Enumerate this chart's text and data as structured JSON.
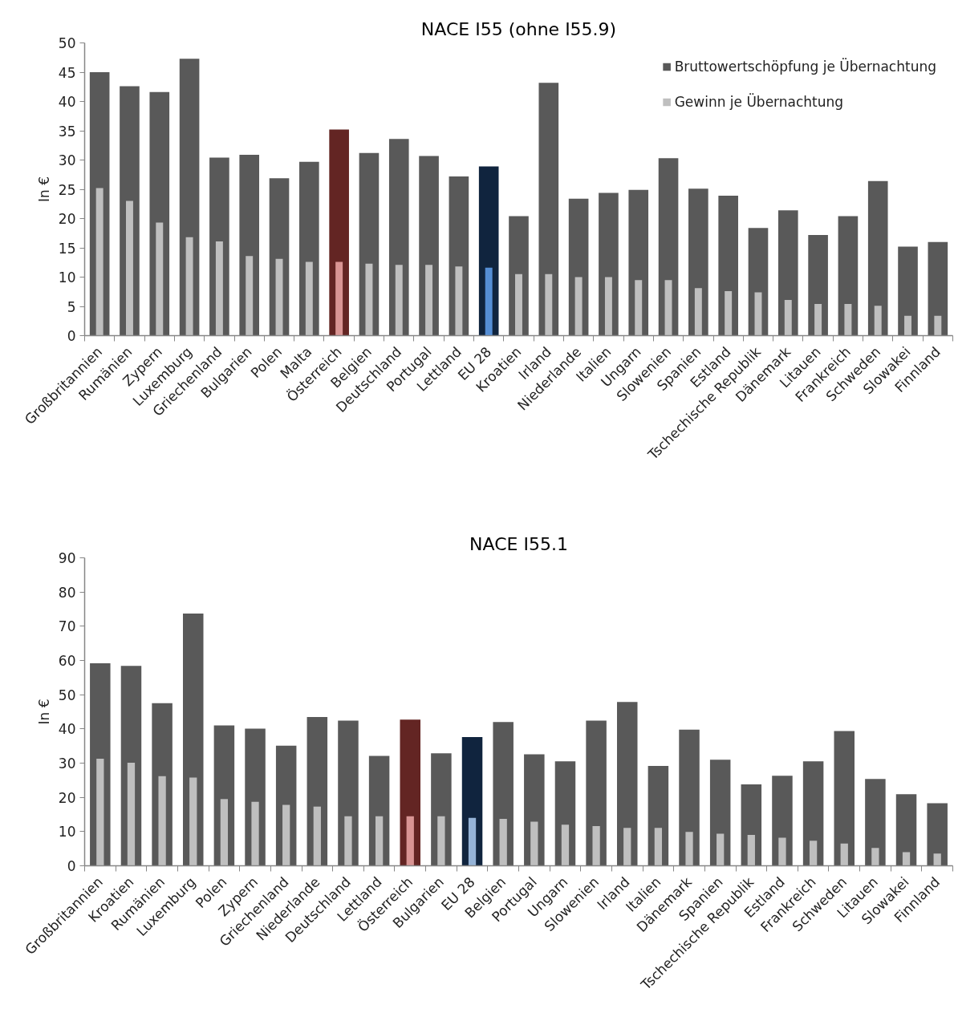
{
  "chart_data": [
    {
      "type": "bar",
      "title": "NACE I55 (ohne I55.9)",
      "ylabel": "In €",
      "categories": [
        "Großbritannien",
        "Rumänien",
        "Zypern",
        "Luxemburg",
        "Griechenland",
        "Bulgarien",
        "Polen",
        "Malta",
        "Österreich",
        "Belgien",
        "Deutschland",
        "Portugal",
        "Lettland",
        "EU 28",
        "Kroatien",
        "Irland",
        "Niederlande",
        "Italien",
        "Ungarn",
        "Slowenien",
        "Spanien",
        "Estland",
        "Tschechische Republik",
        "Dänemark",
        "Litauen",
        "Frankreich",
        "Schweden",
        "Slowakei",
        "Finnland"
      ],
      "series": [
        {
          "name": "Bruttowertschöpfung je Übernachtung",
          "color": "#595959",
          "colors": [
            "#595959",
            "#595959",
            "#595959",
            "#595959",
            "#595959",
            "#595959",
            "#595959",
            "#595959",
            "#632523",
            "#595959",
            "#595959",
            "#595959",
            "#595959",
            "#10243e",
            "#595959",
            "#595959",
            "#595959",
            "#595959",
            "#595959",
            "#595959",
            "#595959",
            "#595959",
            "#595959",
            "#595959",
            "#595959",
            "#595959",
            "#595959",
            "#595959",
            "#595959"
          ],
          "values": [
            45.0,
            42.6,
            41.6,
            47.3,
            30.4,
            30.9,
            26.9,
            29.7,
            35.2,
            31.2,
            33.6,
            30.7,
            27.2,
            28.9,
            20.4,
            43.2,
            23.4,
            24.4,
            24.9,
            30.3,
            25.1,
            23.9,
            18.4,
            21.4,
            17.2,
            20.4,
            26.4,
            15.2,
            16.0
          ]
        },
        {
          "name": "Gewinn je Übernachtung",
          "color": "#bfbfbf",
          "colors": [
            "#bfbfbf",
            "#bfbfbf",
            "#bfbfbf",
            "#bfbfbf",
            "#bfbfbf",
            "#bfbfbf",
            "#bfbfbf",
            "#bfbfbf",
            "#d99594",
            "#bfbfbf",
            "#bfbfbf",
            "#bfbfbf",
            "#bfbfbf",
            "#558ed5",
            "#bfbfbf",
            "#bfbfbf",
            "#bfbfbf",
            "#bfbfbf",
            "#bfbfbf",
            "#bfbfbf",
            "#bfbfbf",
            "#bfbfbf",
            "#bfbfbf",
            "#bfbfbf",
            "#bfbfbf",
            "#bfbfbf",
            "#bfbfbf",
            "#bfbfbf",
            "#bfbfbf"
          ],
          "values": [
            25.2,
            23.0,
            19.3,
            16.8,
            16.1,
            13.6,
            13.1,
            12.6,
            12.6,
            12.3,
            12.1,
            12.1,
            11.8,
            11.6,
            10.5,
            10.5,
            10.0,
            10.0,
            9.5,
            9.5,
            8.1,
            7.6,
            7.4,
            6.1,
            5.4,
            5.4,
            5.1,
            3.4,
            3.4
          ]
        }
      ],
      "ylim": [
        0,
        50
      ],
      "yticks": [
        0,
        5,
        10,
        15,
        20,
        25,
        30,
        35,
        40,
        45,
        50
      ],
      "grid": false,
      "legend": "top right"
    },
    {
      "type": "bar",
      "title": "NACE I55.1",
      "ylabel": "In €",
      "categories": [
        "Großbritannien",
        "Kroatien",
        "Rumänien",
        "Luxemburg",
        "Polen",
        "Zypern",
        "Griechenland",
        "Niederlande",
        "Deutschland",
        "Lettland",
        "Österreich",
        "Bulgarien",
        "EU 28",
        "Belgien",
        "Portugal",
        "Ungarn",
        "Slowenien",
        "Irland",
        "Italien",
        "Dänemark",
        "Spanien",
        "Tschechische Republik",
        "Estland",
        "Frankreich",
        "Schweden",
        "Litauen",
        "Slowakei",
        "Finnland"
      ],
      "series": [
        {
          "colors": [
            "#595959",
            "#595959",
            "#595959",
            "#595959",
            "#595959",
            "#595959",
            "#595959",
            "#595959",
            "#595959",
            "#595959",
            "#632523",
            "#595959",
            "#10243e",
            "#595959",
            "#595959",
            "#595959",
            "#595959",
            "#595959",
            "#595959",
            "#595959",
            "#595959",
            "#595959",
            "#595959",
            "#595959",
            "#595959",
            "#595959",
            "#595959",
            "#595959"
          ],
          "values": [
            59.2,
            58.4,
            47.5,
            73.7,
            41.0,
            40.1,
            35.1,
            43.5,
            42.4,
            32.1,
            42.7,
            32.9,
            37.6,
            42.0,
            32.6,
            30.5,
            42.4,
            47.9,
            29.2,
            39.8,
            31.0,
            23.8,
            26.3,
            30.5,
            39.4,
            25.4,
            20.9,
            18.3
          ]
        },
        {
          "colors": [
            "#bfbfbf",
            "#bfbfbf",
            "#bfbfbf",
            "#bfbfbf",
            "#bfbfbf",
            "#bfbfbf",
            "#bfbfbf",
            "#bfbfbf",
            "#bfbfbf",
            "#bfbfbf",
            "#d99594",
            "#bfbfbf",
            "#95b3d7",
            "#bfbfbf",
            "#bfbfbf",
            "#bfbfbf",
            "#bfbfbf",
            "#bfbfbf",
            "#bfbfbf",
            "#bfbfbf",
            "#bfbfbf",
            "#bfbfbf",
            "#bfbfbf",
            "#bfbfbf",
            "#bfbfbf",
            "#bfbfbf",
            "#bfbfbf",
            "#bfbfbf"
          ],
          "values": [
            31.3,
            30.1,
            26.2,
            25.8,
            19.5,
            18.7,
            17.8,
            17.3,
            14.5,
            14.5,
            14.5,
            14.5,
            14.0,
            13.7,
            12.9,
            12.0,
            11.6,
            11.1,
            11.1,
            9.9,
            9.4,
            9.0,
            8.2,
            7.3,
            6.5,
            5.2,
            4.0,
            3.6
          ]
        }
      ],
      "ylim": [
        0,
        90
      ],
      "yticks": [
        0,
        10,
        20,
        30,
        40,
        50,
        60,
        70,
        80,
        90
      ],
      "grid": false
    }
  ]
}
